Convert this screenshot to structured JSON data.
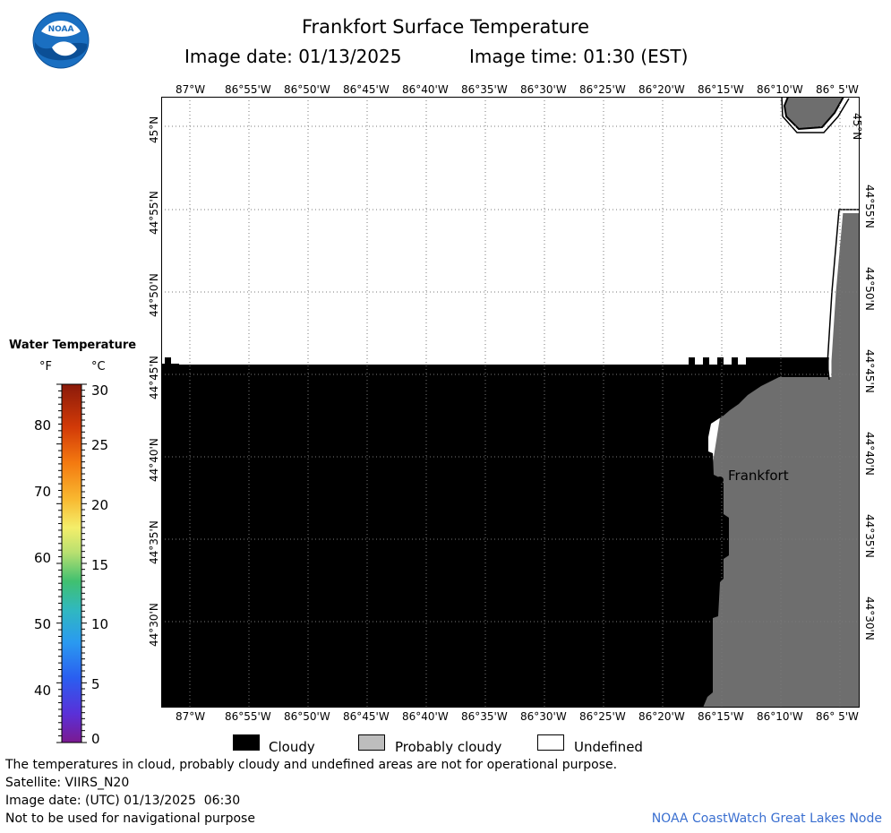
{
  "header": {
    "title": "Frankfort Surface Temperature",
    "image_date": "Image date: 01/13/2025",
    "image_time": "Image time: 01:30 (EST)"
  },
  "logo": {
    "text": "NOAA"
  },
  "map": {
    "lon_ticks": [
      "87°W",
      "86°55'W",
      "86°50'W",
      "86°45'W",
      "86°40'W",
      "86°35'W",
      "86°30'W",
      "86°25'W",
      "86°20'W",
      "86°15'W",
      "86°10'W",
      "86° 5'W"
    ],
    "lat_ticks": [
      "45°N",
      "44°55'N",
      "44°50'N",
      "44°45'N",
      "44°40'N",
      "44°35'N",
      "44°30'N"
    ],
    "place_label": "Frankfort",
    "colors": {
      "cloudy": "#000000",
      "probably_cloudy": "#6e6e6e",
      "undefined": "#ffffff"
    }
  },
  "colorbar": {
    "title": "Water Temperature",
    "unit_f": "°F",
    "unit_c": "°C",
    "f_ticks": [
      "80",
      "70",
      "60",
      "50",
      "40"
    ],
    "c_ticks": [
      "30",
      "25",
      "20",
      "15",
      "10",
      "5",
      "0"
    ]
  },
  "legend": {
    "cloudy": "Cloudy",
    "probably_cloudy": "Probably cloudy",
    "undefined": "Undefined"
  },
  "footer": {
    "note": "The temperatures in cloud, probably cloudy and undefined areas are not for operational purpose.",
    "satellite": "Satellite: VIIRS_N20",
    "utc_date": "Image date: (UTC) 01/13/2025  06:30",
    "nav": "Not to be used for navigational purpose",
    "credit": "NOAA CoastWatch Great Lakes Node"
  }
}
